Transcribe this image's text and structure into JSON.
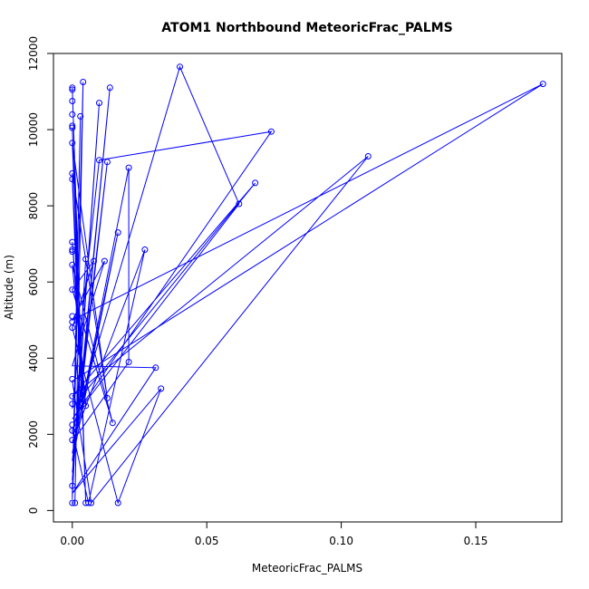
{
  "chart_data": {
    "type": "line",
    "title": "ATOM1 Northbound MeteoricFrac_PALMS",
    "xlabel": "MeteoricFrac_PALMS",
    "ylabel": "Altitude (m)",
    "xlim": [
      -0.007,
      0.182
    ],
    "ylim": [
      -300,
      12000
    ],
    "x_ticks": [
      0.0,
      0.05,
      0.1,
      0.15
    ],
    "x_tick_labels": [
      "0.00",
      "0.05",
      "0.10",
      "0.15"
    ],
    "y_ticks": [
      0,
      2000,
      4000,
      6000,
      8000,
      10000,
      12000
    ],
    "y_tick_labels": [
      "0",
      "2000",
      "4000",
      "6000",
      "8000",
      "10000",
      "12000"
    ],
    "grid": false,
    "series": [
      {
        "points": [
          [
            0.0,
            200
          ],
          [
            0.0,
            650
          ],
          [
            0.0,
            1850
          ],
          [
            0.0,
            2100
          ],
          [
            0.0,
            2250
          ],
          [
            0.0,
            2800
          ],
          [
            0.0,
            3000
          ],
          [
            0.0,
            3450
          ],
          [
            0.0,
            4800
          ],
          [
            0.0,
            4950
          ],
          [
            0.0,
            5100
          ],
          [
            0.0,
            5800
          ],
          [
            0.0,
            6450
          ],
          [
            0.0,
            6800
          ],
          [
            0.0,
            6850
          ],
          [
            0.0,
            7050
          ],
          [
            0.0,
            8700
          ],
          [
            0.0,
            8850
          ],
          [
            0.0,
            9650
          ],
          [
            0.0,
            10050
          ],
          [
            0.0,
            10100
          ],
          [
            0.0,
            10400
          ],
          [
            0.0,
            10750
          ],
          [
            0.0,
            11050
          ],
          [
            0.0,
            11100
          ],
          [
            0.001,
            200
          ],
          [
            0.004,
            11250
          ],
          [
            0.003,
            10350
          ],
          [
            0.003,
            3500
          ],
          [
            0.004,
            3150
          ],
          [
            0.004,
            3100
          ],
          [
            0.004,
            2800
          ],
          [
            0.005,
            2750
          ],
          [
            0.005,
            200
          ],
          [
            0.005,
            6600
          ],
          [
            0.006,
            200
          ],
          [
            0.007,
            200
          ],
          [
            0.008,
            6550
          ],
          [
            0.01,
            10700
          ],
          [
            0.01,
            9200
          ],
          [
            0.012,
            6550
          ],
          [
            0.013,
            9150
          ],
          [
            0.013,
            2950
          ],
          [
            0.014,
            11100
          ],
          [
            0.015,
            2300
          ],
          [
            0.017,
            7300
          ],
          [
            0.017,
            200
          ],
          [
            0.021,
            9000
          ],
          [
            0.021,
            3900
          ],
          [
            0.027,
            6850
          ],
          [
            0.031,
            3750
          ],
          [
            0.033,
            3200
          ],
          [
            0.04,
            11650
          ],
          [
            0.062,
            8050
          ],
          [
            0.068,
            8600
          ],
          [
            0.074,
            9950
          ],
          [
            0.11,
            9300
          ],
          [
            0.175,
            11200
          ]
        ],
        "path_x": [
          0.0,
          0.001,
          0.004,
          0.0,
          0.003,
          0.0,
          0.005,
          0.0,
          0.01,
          0.0,
          0.014,
          0.0,
          0.013,
          0.0,
          0.017,
          0.0,
          0.021,
          0.021,
          0.0,
          0.027,
          0.006,
          0.0,
          0.04,
          0.062,
          0.0,
          0.074,
          0.01,
          0.0,
          0.068,
          0.0,
          0.11,
          0.007,
          0.0,
          0.175,
          0.0,
          0.012,
          0.0,
          0.031,
          0.0,
          0.033,
          0.017,
          0.0,
          0.008,
          0.0,
          0.015,
          0.0,
          0.005,
          0.0,
          0.004,
          0.0,
          0.003,
          0.0,
          0.013,
          0.0,
          0.004,
          0.0,
          0.005,
          0.0
        ],
        "path_y": [
          200,
          200,
          11250,
          300,
          10350,
          400,
          6600,
          600,
          10700,
          800,
          11100,
          1000,
          9150,
          1300,
          7300,
          1500,
          9000,
          3900,
          1800,
          6850,
          200,
          2100,
          11650,
          8050,
          2400,
          9950,
          9200,
          2700,
          8600,
          3000,
          9300,
          200,
          3400,
          11200,
          5000,
          6550,
          3800,
          3750,
          450,
          3200,
          200,
          4800,
          6550,
          5800,
          2300,
          6450,
          2750,
          7050,
          3150,
          8700,
          3500,
          8850,
          2950,
          9650,
          2800,
          10050,
          200,
          11100
        ]
      }
    ]
  }
}
